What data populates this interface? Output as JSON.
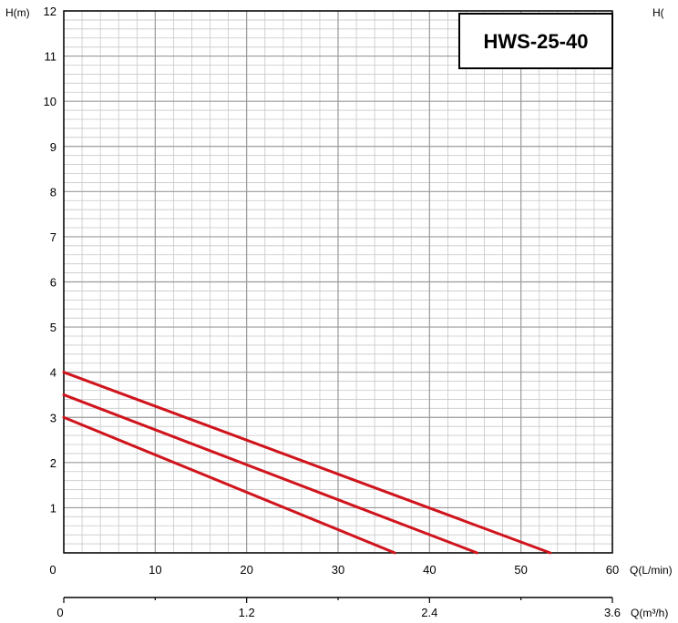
{
  "chart_data": {
    "type": "line",
    "title": "HWS-25-40",
    "ylabel": "H(m)",
    "xlabel": "Q(L/min)",
    "x2label": "Q(m³/h)",
    "y_tick_labels": [
      "1",
      "2",
      "3",
      "4",
      "5",
      "6",
      "7",
      "8",
      "9",
      "10",
      "11",
      "12"
    ],
    "x_tick_labels": [
      "0",
      "10",
      "20",
      "30",
      "40",
      "50",
      "60"
    ],
    "x2_tick_labels": [
      "0",
      "1.2",
      "2.4",
      "3.6"
    ],
    "cutoff_label": "H(",
    "xlim": [
      0,
      60
    ],
    "ylim": [
      0,
      12
    ],
    "x2lim": [
      0,
      3.6
    ],
    "grid": true,
    "series": [
      {
        "x": [
          0,
          53.2
        ],
        "y": [
          4.0,
          0
        ],
        "color": "#d0141c"
      },
      {
        "x": [
          0,
          45.2
        ],
        "y": [
          3.5,
          0
        ],
        "color": "#d0141c"
      },
      {
        "x": [
          0,
          36.2
        ],
        "y": [
          3.0,
          0
        ],
        "color": "#d0141c"
      }
    ]
  }
}
